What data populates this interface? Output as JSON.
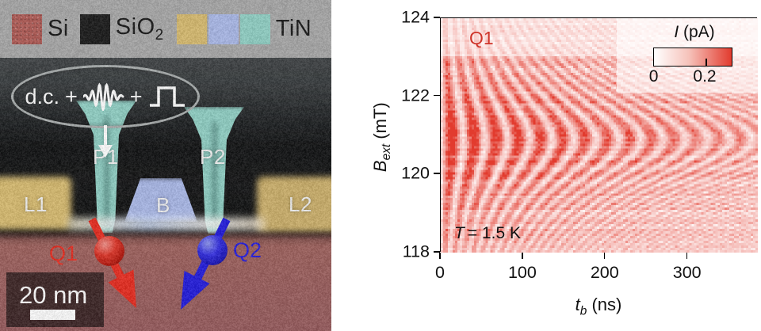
{
  "panel_left": {
    "legend": {
      "si_label": "Si",
      "sio2_label": "SiO",
      "sio2_sub": "2",
      "tin_label": "TiN",
      "colors": {
        "si": "#b25a55",
        "sio2": "#161616",
        "gold": "#d8bb6e",
        "barrier": "#aab9ea",
        "tin": "#8fd0c5",
        "bar_bg": "#a8a8a8"
      }
    },
    "pulse_annotation": {
      "dc": "d.c.",
      "plus_1": "+",
      "plus_2": "+"
    },
    "gates": {
      "p1": "P1",
      "p2": "P2",
      "l1": "L1",
      "l2": "L2",
      "b": "B"
    },
    "qubits": {
      "q1": "Q1",
      "q2": "Q2",
      "q1_color": "#e8281b",
      "q2_color": "#2018e0"
    },
    "scale_bar": {
      "label": "20 nm"
    }
  },
  "chart_data": {
    "type": "heatmap",
    "title": "",
    "xlabel": "t_b (ns)",
    "ylabel": "B_ext (mT)",
    "xlabel_parts": {
      "italic": "t",
      "sub": "b",
      "rest": " (ns)"
    },
    "ylabel_parts": {
      "italic": "B",
      "sub": "ext",
      "rest": " (mT)"
    },
    "xlim": [
      0,
      385
    ],
    "ylim": [
      118,
      124
    ],
    "xticks": [
      0,
      100,
      200,
      300
    ],
    "yticks": [
      124,
      122,
      120,
      118
    ],
    "grid": false,
    "colorbar": {
      "label_italic": "I",
      "label_rest": " (pA)",
      "tick_labels": [
        "0",
        "0.2"
      ],
      "min": 0,
      "max": 0.3,
      "color_low": "#ffffff",
      "color_high": "#e23b2e"
    },
    "annotations": {
      "qubit": {
        "text": "Q1",
        "color": "#cf352b"
      },
      "temperature": {
        "italic": "T",
        "rest": "= 1.5 K"
      }
    },
    "pattern": {
      "kind": "rabi_chevron",
      "resonance_mT": 120.9,
      "rabi_frequency_MHz": 37,
      "gyromagnetic_MHz_per_mT": 28,
      "decay_ns": 400,
      "amplitude_pA": 0.3,
      "noise_pA": 0.05
    }
  }
}
